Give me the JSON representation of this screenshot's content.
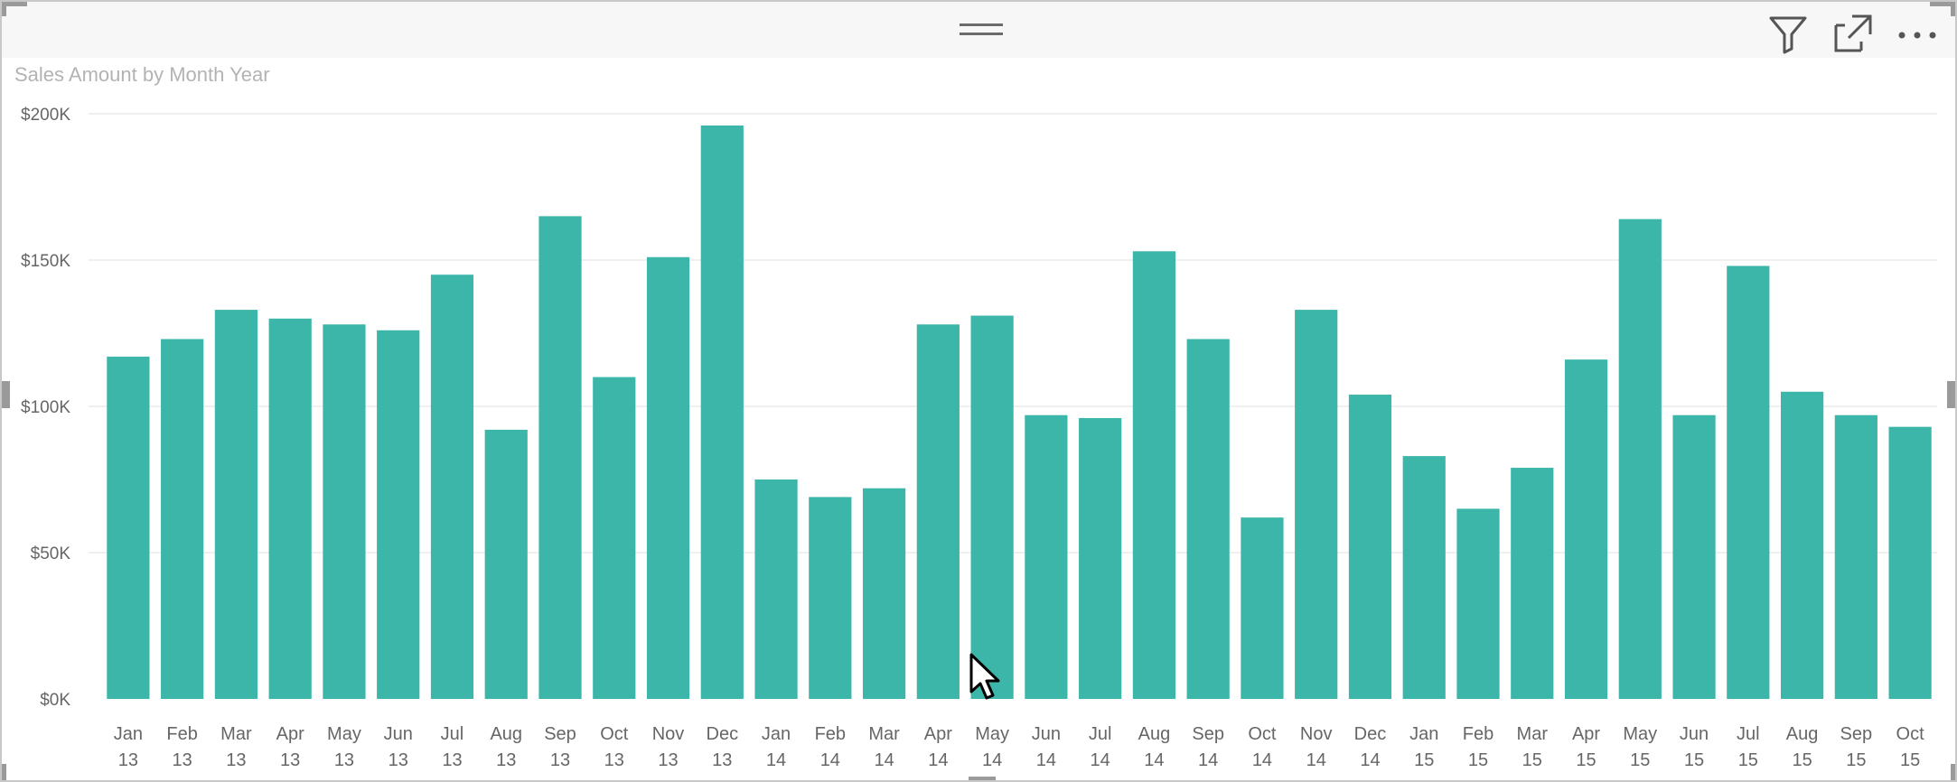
{
  "visual": {
    "title": "Sales Amount by Month Year"
  },
  "toolbar": {
    "icons": [
      "drag-handle-icon",
      "filter-icon",
      "focus-mode-icon",
      "more-options-icon"
    ]
  },
  "colors": {
    "bar": "#3cb6a8",
    "gridline": "#ececec",
    "axis_text": "#666666",
    "title": "#b3b3b3"
  },
  "chart_data": {
    "type": "bar",
    "title": "Sales Amount by Month Year",
    "xlabel": "",
    "ylabel": "",
    "ylim": [
      0,
      200000
    ],
    "y_ticks": [
      0,
      50000,
      100000,
      150000,
      200000
    ],
    "y_tick_labels": [
      "$0K",
      "$50K",
      "$100K",
      "$150K",
      "$200K"
    ],
    "grid": true,
    "categories": [
      [
        "Jan",
        "13"
      ],
      [
        "Feb",
        "13"
      ],
      [
        "Mar",
        "13"
      ],
      [
        "Apr",
        "13"
      ],
      [
        "May",
        "13"
      ],
      [
        "Jun",
        "13"
      ],
      [
        "Jul",
        "13"
      ],
      [
        "Aug",
        "13"
      ],
      [
        "Sep",
        "13"
      ],
      [
        "Oct",
        "13"
      ],
      [
        "Nov",
        "13"
      ],
      [
        "Dec",
        "13"
      ],
      [
        "Jan",
        "14"
      ],
      [
        "Feb",
        "14"
      ],
      [
        "Mar",
        "14"
      ],
      [
        "Apr",
        "14"
      ],
      [
        "May",
        "14"
      ],
      [
        "Jun",
        "14"
      ],
      [
        "Jul",
        "14"
      ],
      [
        "Aug",
        "14"
      ],
      [
        "Sep",
        "14"
      ],
      [
        "Oct",
        "14"
      ],
      [
        "Nov",
        "14"
      ],
      [
        "Dec",
        "14"
      ],
      [
        "Jan",
        "15"
      ],
      [
        "Feb",
        "15"
      ],
      [
        "Mar",
        "15"
      ],
      [
        "Apr",
        "15"
      ],
      [
        "May",
        "15"
      ],
      [
        "Jun",
        "15"
      ],
      [
        "Jul",
        "15"
      ],
      [
        "Aug",
        "15"
      ],
      [
        "Sep",
        "15"
      ],
      [
        "Oct",
        "15"
      ]
    ],
    "values": [
      117000,
      123000,
      133000,
      130000,
      128000,
      126000,
      145000,
      92000,
      165000,
      110000,
      151000,
      196000,
      75000,
      69000,
      72000,
      128000,
      131000,
      97000,
      96000,
      153000,
      123000,
      62000,
      133000,
      104000,
      83000,
      65000,
      79000,
      116000,
      164000,
      97000,
      148000,
      105000,
      97000,
      93000
    ]
  }
}
